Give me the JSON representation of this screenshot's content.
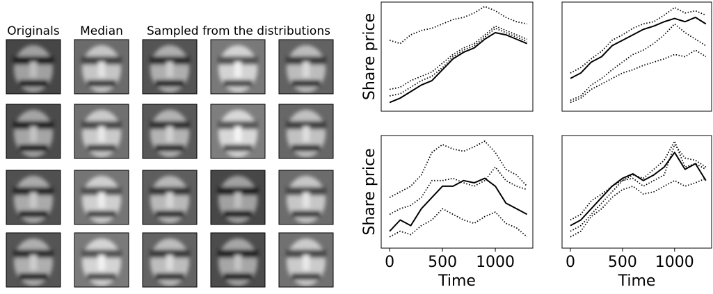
{
  "faces": {
    "column_titles": [
      "Originals",
      "Median",
      "Sampled from the distributions"
    ]
  },
  "chart_data": [
    {
      "type": "line",
      "ylabel": "Share price",
      "x": [
        0,
        100,
        200,
        300,
        400,
        500,
        600,
        700,
        800,
        900,
        1000,
        1100,
        1200,
        1300
      ],
      "xlim": [
        -80,
        1355
      ],
      "ylim": [
        0,
        100
      ],
      "series": [
        {
          "color": "#000",
          "style": "solid",
          "values": [
            8,
            12,
            18,
            24,
            28,
            38,
            48,
            54,
            58,
            66,
            72,
            70,
            66,
            62
          ]
        },
        {
          "color": "#000",
          "style": "dotted",
          "values": [
            65,
            62,
            70,
            74,
            76,
            80,
            84,
            86,
            90,
            96,
            92,
            86,
            82,
            80
          ]
        },
        {
          "color": "#000",
          "style": "dotted",
          "values": [
            20,
            22,
            28,
            32,
            36,
            44,
            52,
            58,
            62,
            70,
            78,
            74,
            70,
            66
          ]
        },
        {
          "color": "#000",
          "style": "dotted",
          "values": [
            14,
            16,
            22,
            28,
            32,
            40,
            50,
            56,
            60,
            68,
            76,
            72,
            68,
            64
          ]
        }
      ]
    },
    {
      "type": "line",
      "x": [
        0,
        100,
        200,
        300,
        400,
        500,
        600,
        700,
        800,
        900,
        1000,
        1100,
        1200,
        1300
      ],
      "xlim": [
        -80,
        1355
      ],
      "ylim": [
        0,
        100
      ],
      "series": [
        {
          "color": "#000",
          "style": "solid",
          "values": [
            30,
            35,
            45,
            50,
            60,
            65,
            70,
            75,
            78,
            82,
            85,
            82,
            86,
            80
          ]
        },
        {
          "color": "#000",
          "style": "dotted",
          "values": [
            35,
            40,
            48,
            55,
            65,
            70,
            76,
            80,
            82,
            88,
            95,
            90,
            92,
            88
          ]
        },
        {
          "color": "#000",
          "style": "dotted",
          "values": [
            10,
            14,
            24,
            30,
            38,
            45,
            52,
            56,
            62,
            70,
            80,
            72,
            66,
            60
          ]
        },
        {
          "color": "#000",
          "style": "dotted",
          "values": [
            8,
            12,
            20,
            25,
            30,
            35,
            38,
            42,
            45,
            48,
            52,
            50,
            56,
            50
          ]
        }
      ]
    },
    {
      "type": "line",
      "ylabel": "Share price",
      "xlabel": "Time",
      "x": [
        0,
        100,
        200,
        300,
        400,
        500,
        600,
        700,
        800,
        900,
        1000,
        1100,
        1200,
        1300
      ],
      "xlim": [
        -80,
        1355
      ],
      "ylim": [
        0,
        100
      ],
      "xticks": [
        0,
        500,
        1000
      ],
      "series": [
        {
          "color": "#000",
          "style": "solid",
          "values": [
            15,
            25,
            20,
            35,
            45,
            55,
            55,
            60,
            58,
            62,
            55,
            40,
            35,
            30
          ]
        },
        {
          "color": "#000",
          "style": "dotted",
          "values": [
            45,
            50,
            55,
            65,
            85,
            92,
            88,
            86,
            90,
            95,
            85,
            70,
            65,
            55
          ]
        },
        {
          "color": "#000",
          "style": "dotted",
          "values": [
            30,
            35,
            38,
            45,
            60,
            60,
            62,
            58,
            55,
            60,
            72,
            60,
            55,
            52
          ]
        },
        {
          "color": "#000",
          "style": "dotted",
          "values": [
            10,
            15,
            12,
            20,
            25,
            35,
            30,
            25,
            22,
            28,
            32,
            22,
            18,
            10
          ]
        }
      ]
    },
    {
      "type": "line",
      "xlabel": "Time",
      "x": [
        0,
        100,
        200,
        300,
        400,
        500,
        600,
        700,
        800,
        900,
        1000,
        1100,
        1200,
        1300
      ],
      "xlim": [
        -80,
        1355
      ],
      "ylim": [
        0,
        100
      ],
      "xticks": [
        0,
        500,
        1000
      ],
      "series": [
        {
          "color": "#000",
          "style": "solid",
          "values": [
            20,
            25,
            35,
            45,
            55,
            62,
            66,
            60,
            65,
            72,
            85,
            70,
            75,
            60
          ]
        },
        {
          "color": "#000",
          "style": "dotted",
          "values": [
            15,
            20,
            30,
            40,
            50,
            60,
            62,
            55,
            60,
            65,
            92,
            80,
            78,
            72
          ]
        },
        {
          "color": "#000",
          "style": "dotted",
          "values": [
            10,
            15,
            28,
            35,
            45,
            52,
            55,
            48,
            50,
            55,
            60,
            55,
            58,
            62
          ]
        },
        {
          "color": "#000",
          "style": "dotted",
          "values": [
            25,
            30,
            42,
            48,
            55,
            60,
            65,
            62,
            70,
            78,
            95,
            72,
            75,
            70
          ]
        }
      ]
    }
  ]
}
